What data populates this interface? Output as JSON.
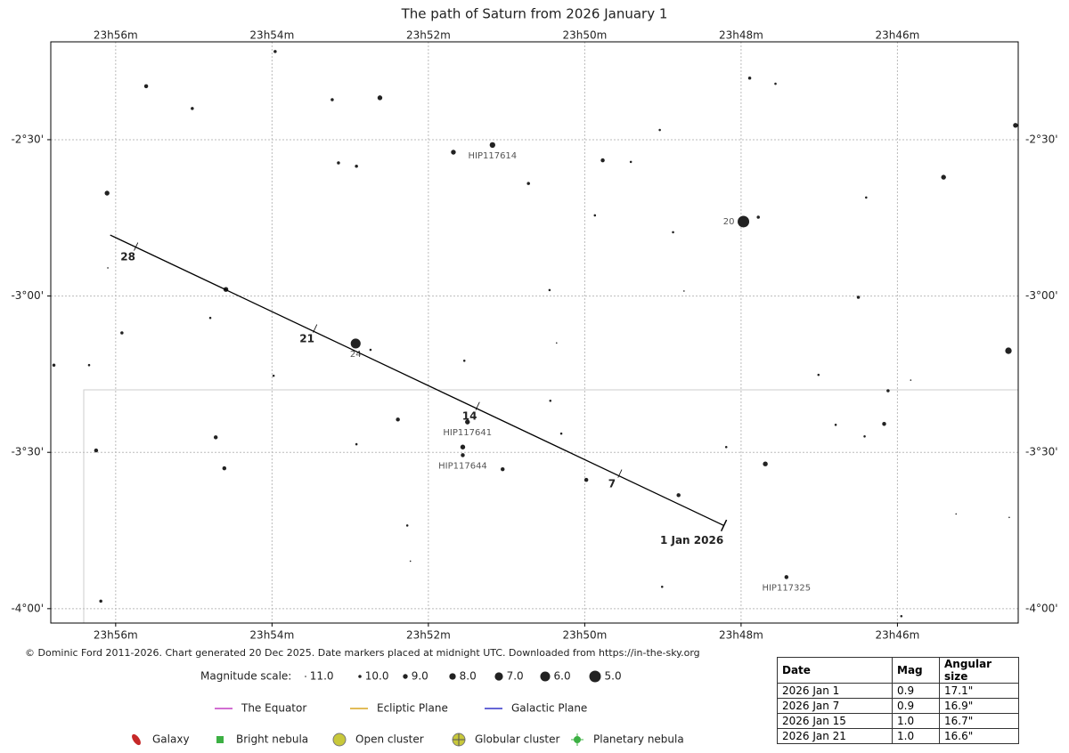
{
  "chart_data": {
    "type": "starchart",
    "title": "The path of Saturn from 2026 January 1",
    "xlim": [
      56.83,
      44.455
    ],
    "ylim": [
      -4.046,
      -2.187
    ],
    "xticks": [
      {
        "value": 56,
        "label": "23h56m"
      },
      {
        "value": 54,
        "label": "23h54m"
      },
      {
        "value": 52,
        "label": "23h52m"
      },
      {
        "value": 50,
        "label": "23h50m"
      },
      {
        "value": 48,
        "label": "23h48m"
      },
      {
        "value": 46,
        "label": "23h46m"
      }
    ],
    "yticks": [
      {
        "value": -2.5,
        "label": "-2°30'"
      },
      {
        "value": -3,
        "label": "-3°00'"
      },
      {
        "value": -3.5,
        "label": "-3°30'"
      },
      {
        "value": -4,
        "label": "-4°00'"
      }
    ],
    "grid": true,
    "stars": {
      "x": [
        53.96,
        55.61,
        55.02,
        53.23,
        52.62,
        47.89,
        47.56,
        49.04,
        44.49,
        51.68,
        51.18,
        49.77,
        49.41,
        53.15,
        52.92,
        56.11,
        50.72,
        45.41,
        46.4,
        49.87,
        47.78,
        47.97,
        48.87,
        56.1,
        54.59,
        50.45,
        48.73,
        46.5,
        54.79,
        55.92,
        52.93,
        52.74,
        50.36,
        44.58,
        56.79,
        56.34,
        51.54,
        53.98,
        47.01,
        45.83,
        46.12,
        50.44,
        52.39,
        51.5,
        50.3,
        54.72,
        46.79,
        46.17,
        46.42,
        52.92,
        56.25,
        51.56,
        51.56,
        48.19,
        54.61,
        51.05,
        47.69,
        49.98,
        48.8,
        45.25,
        44.57,
        52.27,
        52.23,
        47.42,
        56.19,
        49.01,
        45.95
      ],
      "y": [
        -2.218,
        -2.329,
        -2.4,
        -2.372,
        -2.366,
        -2.303,
        -2.321,
        -2.469,
        -2.454,
        -2.54,
        -2.517,
        -2.566,
        -2.571,
        -2.574,
        -2.585,
        -2.671,
        -2.64,
        -2.62,
        -2.685,
        -2.742,
        -2.748,
        -2.762,
        -2.796,
        -2.91,
        -2.979,
        -2.981,
        -2.984,
        -3.004,
        -3.07,
        -3.118,
        -3.152,
        -3.172,
        -3.15,
        -3.175,
        -3.221,
        -3.221,
        -3.207,
        -3.255,
        -3.252,
        -3.269,
        -3.303,
        -3.335,
        -3.395,
        -3.403,
        -3.44,
        -3.452,
        -3.412,
        -3.409,
        -3.449,
        -3.474,
        -3.494,
        -3.483,
        -3.509,
        -3.483,
        -3.551,
        -3.554,
        -3.537,
        -3.588,
        -3.637,
        -3.697,
        -3.708,
        -3.734,
        -3.848,
        -3.899,
        -3.976,
        -3.93,
        -4.024
      ],
      "mag": [
        10,
        9.5,
        10,
        10,
        9,
        10,
        10.5,
        10.5,
        9,
        9,
        8.5,
        9.5,
        10.5,
        10,
        10,
        9,
        10,
        9,
        10.5,
        10.5,
        10,
        5,
        10.5,
        11,
        9,
        10.5,
        11,
        10,
        10.5,
        10,
        6,
        10.5,
        11,
        8,
        10,
        10.5,
        10.5,
        10.5,
        10.5,
        11,
        10,
        10.5,
        9.5,
        9,
        10.5,
        9.5,
        10.5,
        9.5,
        10.5,
        10.5,
        9.5,
        9,
        9.5,
        10.5,
        9.5,
        9.5,
        9,
        9.5,
        9.5,
        11,
        11,
        10.5,
        11,
        9.5,
        10,
        10.5,
        10.5
      ],
      "names": [
        null,
        null,
        null,
        null,
        null,
        null,
        null,
        null,
        null,
        null,
        "HIP117614",
        null,
        null,
        null,
        null,
        null,
        null,
        null,
        null,
        null,
        null,
        "20",
        null,
        null,
        null,
        null,
        null,
        null,
        null,
        null,
        "24",
        null,
        null,
        null,
        null,
        null,
        null,
        null,
        null,
        null,
        null,
        null,
        null,
        "HIP117641",
        null,
        null,
        null,
        null,
        null,
        null,
        null,
        null,
        "HIP117644",
        null,
        null,
        null,
        null,
        null,
        null,
        null,
        null,
        null,
        null,
        "HIP117325",
        null,
        null,
        null
      ]
    },
    "path": {
      "x": [
        56.07,
        48.22
      ],
      "y": [
        -2.805,
        -3.734
      ]
    },
    "date_markers": {
      "labels": [
        "28",
        "21",
        "14",
        "7",
        "1 Jan 2026"
      ],
      "x": [
        55.74,
        53.45,
        51.37,
        49.55,
        48.22
      ],
      "y": [
        -2.842,
        -3.104,
        -3.352,
        -3.568,
        -3.734
      ]
    },
    "note": "© Dominic Ford 2011-2026. Chart generated 20 Dec 2025. Date markers placed at midnight UTC. Downloaded from https://in-the-sky.org",
    "magnitude_scale": {
      "title": "Magnitude scale:",
      "values": [
        {
          "value": 11,
          "label": "11.0"
        },
        {
          "value": 10,
          "label": "10.0"
        },
        {
          "value": 9,
          "label": "9.0"
        },
        {
          "value": 8,
          "label": "8.0"
        },
        {
          "value": 7,
          "label": "7.0"
        },
        {
          "value": 6,
          "label": "6.0"
        },
        {
          "value": 5,
          "label": "5.0"
        }
      ]
    },
    "legend_lines": [
      {
        "name": "The Equator",
        "color": "#c43fc4"
      },
      {
        "name": "Ecliptic Plane",
        "color": "#d9a520"
      },
      {
        "name": "Galactic Plane",
        "color": "#3434c8"
      }
    ],
    "object_types": [
      "Galaxy",
      "Bright nebula",
      "Open cluster",
      "Globular cluster",
      "Planetary nebula"
    ]
  },
  "table": {
    "header": [
      "Date",
      "Mag",
      "Angular size"
    ],
    "rows": [
      [
        "2026 Jan 1",
        "0.9",
        "17.1\""
      ],
      [
        "2026 Jan 7",
        "0.9",
        "16.9\""
      ],
      [
        "2026 Jan 15",
        "1.0",
        "16.7\""
      ],
      [
        "2026 Jan 21",
        "1.0",
        "16.6\""
      ]
    ]
  }
}
